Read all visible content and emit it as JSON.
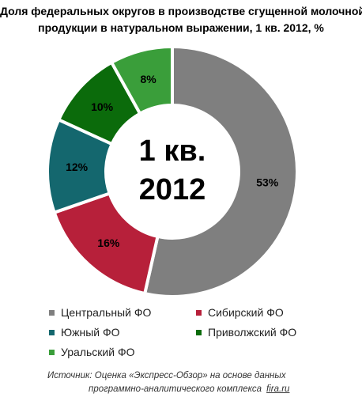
{
  "title_line1": "Доля федеральных округов в производстве сгущенной молочной",
  "title_line2": "продукции в натуральном выражении, 1 кв. 2012, %",
  "center_label_line1": "1 кв.",
  "center_label_line2": "2012",
  "colors": {
    "Центральный ФО": "#7f7f7f",
    "Сибирский ФО": "#b7203a",
    "Южный ФО": "#14676e",
    "Приволжский ФО": "#0b6b0b",
    "Уральский ФО": "#3a9e3a"
  },
  "chart_data": {
    "type": "pie",
    "donut": true,
    "title": "Доля федеральных округов в производстве сгущенной молочной продукции в натуральном выражении, 1 кв. 2012, %",
    "legend_position": "bottom",
    "categories": [
      "Центральный ФО",
      "Сибирский ФО",
      "Южный ФО",
      "Приволжский ФО",
      "Уральский ФО"
    ],
    "values": [
      53,
      16,
      12,
      10,
      8
    ],
    "data_labels": [
      "53%",
      "16%",
      "12%",
      "10%",
      "8%"
    ]
  },
  "legend": [
    {
      "label": "Центральный ФО"
    },
    {
      "label": "Сибирский ФО"
    },
    {
      "label": "Южный ФО"
    },
    {
      "label": "Приволжский ФО"
    },
    {
      "label": "Уральский ФО"
    }
  ],
  "source": {
    "line1": "Источник: Оценка «Экспресс-Обзор» на основе данных",
    "line2": "программно-аналитического комплекса",
    "site": "fira.ru"
  }
}
